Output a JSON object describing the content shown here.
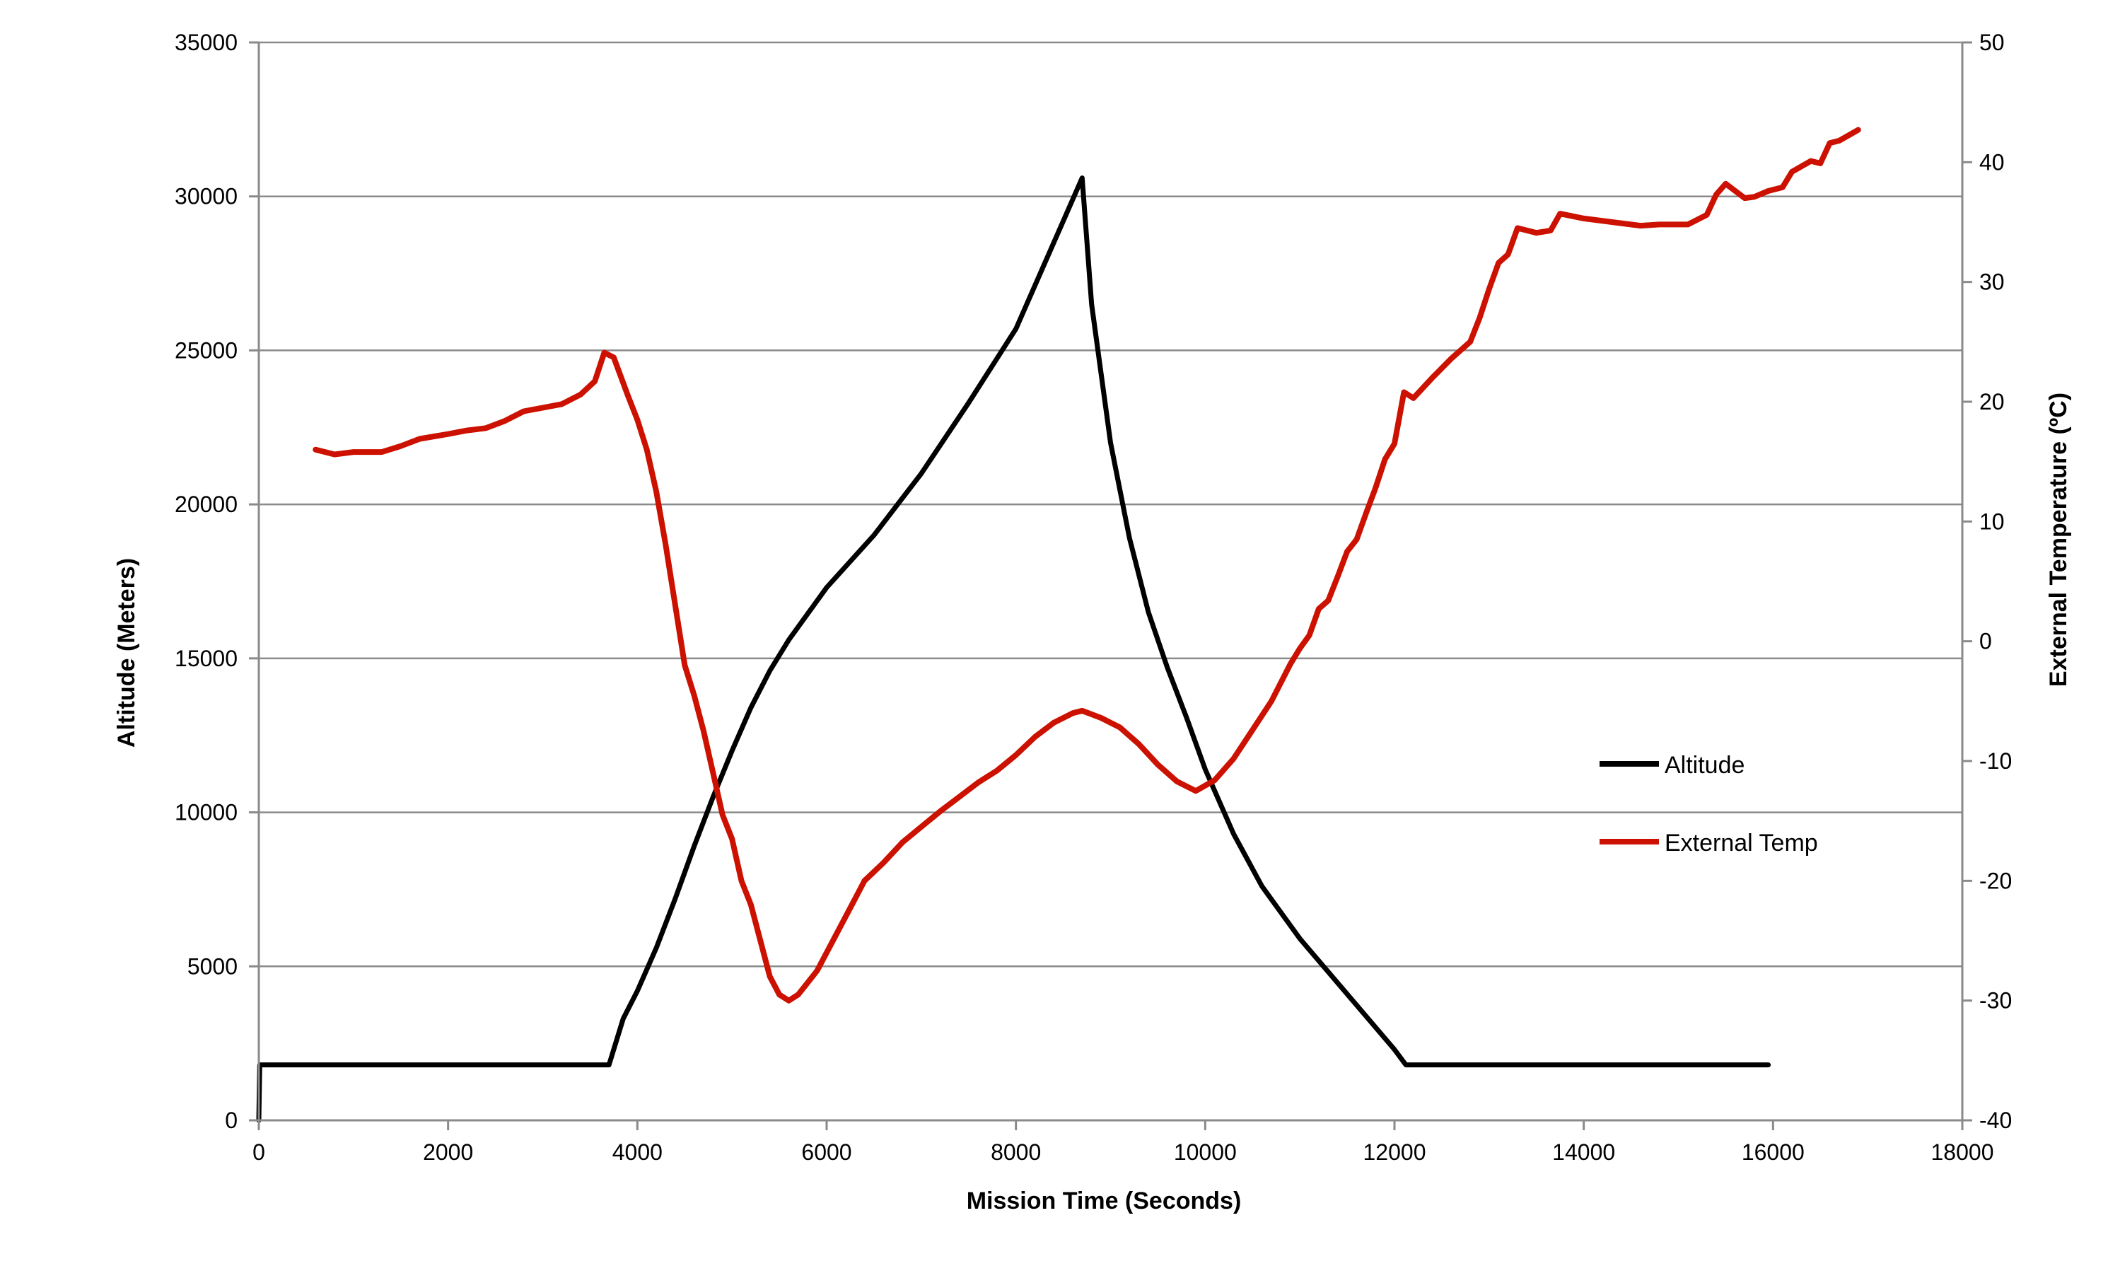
{
  "chart_data": {
    "type": "line",
    "xlabel": "Mission Time (Seconds)",
    "ylabel": "Altitude (Meters)",
    "y2label": "External Temperature (ºC)",
    "xlim": [
      0,
      18000
    ],
    "ylim": [
      0,
      35000
    ],
    "y2lim": [
      -40,
      50
    ],
    "x_ticks": [
      0,
      2000,
      4000,
      6000,
      8000,
      10000,
      12000,
      14000,
      16000,
      18000
    ],
    "y_ticks": [
      0,
      5000,
      10000,
      15000,
      20000,
      25000,
      30000,
      35000
    ],
    "y2_ticks": [
      -40,
      -30,
      -20,
      -10,
      0,
      10,
      20,
      30,
      40,
      50
    ],
    "grid": "horizontal",
    "legend_position": "right",
    "series": [
      {
        "name": "Altitude",
        "axis": "left",
        "color": "#000000",
        "points": [
          [
            0,
            0
          ],
          [
            10,
            1800
          ],
          [
            1000,
            1800
          ],
          [
            2000,
            1800
          ],
          [
            3000,
            1800
          ],
          [
            3700,
            1800
          ],
          [
            3850,
            3300
          ],
          [
            4000,
            4200
          ],
          [
            4200,
            5600
          ],
          [
            4400,
            7200
          ],
          [
            4600,
            8900
          ],
          [
            4800,
            10500
          ],
          [
            5000,
            12000
          ],
          [
            5200,
            13400
          ],
          [
            5400,
            14600
          ],
          [
            5600,
            15600
          ],
          [
            6000,
            17300
          ],
          [
            6500,
            19000
          ],
          [
            7000,
            21000
          ],
          [
            7500,
            23300
          ],
          [
            8000,
            25700
          ],
          [
            8500,
            29200
          ],
          [
            8700,
            30600
          ],
          [
            8800,
            26500
          ],
          [
            9000,
            22000
          ],
          [
            9200,
            18900
          ],
          [
            9400,
            16500
          ],
          [
            9600,
            14700
          ],
          [
            9800,
            13100
          ],
          [
            10000,
            11400
          ],
          [
            10300,
            9300
          ],
          [
            10600,
            7600
          ],
          [
            11000,
            5900
          ],
          [
            11500,
            4100
          ],
          [
            12000,
            2300
          ],
          [
            12120,
            1800
          ],
          [
            13000,
            1800
          ],
          [
            14000,
            1800
          ],
          [
            15000,
            1800
          ],
          [
            15950,
            1800
          ]
        ]
      },
      {
        "name": "External Temp",
        "axis": "right",
        "color": "#cc1100",
        "points": [
          [
            600,
            16
          ],
          [
            800,
            15.6
          ],
          [
            1000,
            15.8
          ],
          [
            1300,
            15.8
          ],
          [
            1500,
            16.3
          ],
          [
            1700,
            16.9
          ],
          [
            2000,
            17.3
          ],
          [
            2200,
            17.6
          ],
          [
            2400,
            17.8
          ],
          [
            2600,
            18.4
          ],
          [
            2800,
            19.2
          ],
          [
            3000,
            19.5
          ],
          [
            3200,
            19.8
          ],
          [
            3400,
            20.6
          ],
          [
            3550,
            21.7
          ],
          [
            3650,
            24.1
          ],
          [
            3750,
            23.7
          ],
          [
            3900,
            20.5
          ],
          [
            4000,
            18.5
          ],
          [
            4100,
            16
          ],
          [
            4200,
            12.5
          ],
          [
            4300,
            8
          ],
          [
            4400,
            3
          ],
          [
            4500,
            -2
          ],
          [
            4600,
            -4.5
          ],
          [
            4700,
            -7.5
          ],
          [
            4800,
            -11
          ],
          [
            4900,
            -14.5
          ],
          [
            5000,
            -16.5
          ],
          [
            5100,
            -20
          ],
          [
            5200,
            -22
          ],
          [
            5300,
            -25
          ],
          [
            5400,
            -28
          ],
          [
            5500,
            -29.5
          ],
          [
            5600,
            -30
          ],
          [
            5700,
            -29.5
          ],
          [
            5800,
            -28.5
          ],
          [
            5900,
            -27.5
          ],
          [
            6000,
            -26
          ],
          [
            6100,
            -24.5
          ],
          [
            6200,
            -23
          ],
          [
            6300,
            -21.5
          ],
          [
            6400,
            -20
          ],
          [
            6600,
            -18.5
          ],
          [
            6800,
            -16.8
          ],
          [
            7000,
            -15.5
          ],
          [
            7200,
            -14.2
          ],
          [
            7400,
            -13
          ],
          [
            7600,
            -11.8
          ],
          [
            7800,
            -10.8
          ],
          [
            8000,
            -9.5
          ],
          [
            8200,
            -8
          ],
          [
            8400,
            -6.8
          ],
          [
            8600,
            -6
          ],
          [
            8700,
            -5.8
          ],
          [
            8900,
            -6.4
          ],
          [
            9100,
            -7.2
          ],
          [
            9300,
            -8.6
          ],
          [
            9500,
            -10.3
          ],
          [
            9700,
            -11.7
          ],
          [
            9900,
            -12.5
          ],
          [
            10100,
            -11.6
          ],
          [
            10300,
            -9.8
          ],
          [
            10500,
            -7.4
          ],
          [
            10700,
            -5
          ],
          [
            10900,
            -1.9
          ],
          [
            11000,
            -0.6
          ],
          [
            11100,
            0.5
          ],
          [
            11200,
            2.7
          ],
          [
            11300,
            3.4
          ],
          [
            11400,
            5.4
          ],
          [
            11500,
            7.5
          ],
          [
            11600,
            8.5
          ],
          [
            11700,
            10.7
          ],
          [
            11800,
            12.8
          ],
          [
            11900,
            15.2
          ],
          [
            12000,
            16.5
          ],
          [
            12100,
            20.8
          ],
          [
            12200,
            20.3
          ],
          [
            12400,
            22
          ],
          [
            12600,
            23.6
          ],
          [
            12800,
            25
          ],
          [
            12900,
            27
          ],
          [
            13000,
            29.4
          ],
          [
            13100,
            31.6
          ],
          [
            13200,
            32.3
          ],
          [
            13300,
            34.5
          ],
          [
            13500,
            34.1
          ],
          [
            13650,
            34.3
          ],
          [
            13750,
            35.7
          ],
          [
            14000,
            35.3
          ],
          [
            14300,
            35
          ],
          [
            14600,
            34.7
          ],
          [
            14800,
            34.8
          ],
          [
            15100,
            34.8
          ],
          [
            15300,
            35.6
          ],
          [
            15400,
            37.3
          ],
          [
            15500,
            38.2
          ],
          [
            15700,
            37
          ],
          [
            15800,
            37.1
          ],
          [
            15950,
            37.6
          ],
          [
            16100,
            37.9
          ],
          [
            16200,
            39.2
          ],
          [
            16400,
            40.1
          ],
          [
            16500,
            39.9
          ],
          [
            16600,
            41.6
          ],
          [
            16700,
            41.8
          ],
          [
            16900,
            42.7
          ]
        ]
      }
    ]
  }
}
